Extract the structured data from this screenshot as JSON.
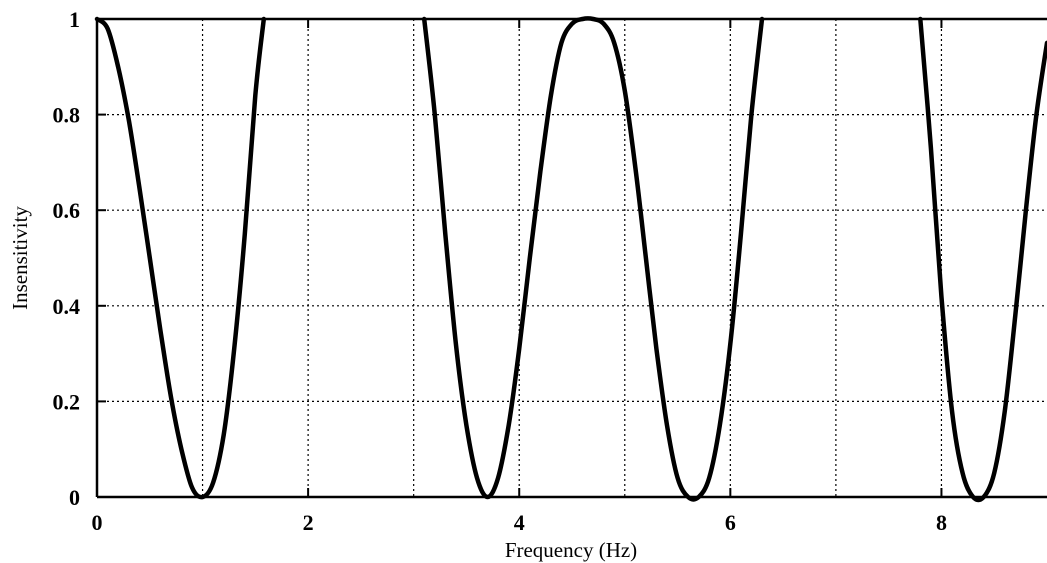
{
  "chart_data": {
    "type": "line",
    "title": "",
    "xlabel": "Frequency (Hz)",
    "ylabel": "Insensitivity",
    "xlim": [
      0,
      9
    ],
    "ylim": [
      0,
      1
    ],
    "x_ticks": [
      0,
      2,
      4,
      6,
      8
    ],
    "y_ticks": [
      0,
      0.2,
      0.4,
      0.6,
      0.8,
      1
    ],
    "x_tick_labels": [
      "0",
      "2",
      "4",
      "6",
      "8"
    ],
    "y_tick_labels": [
      "0",
      "0.2",
      "0.4",
      "0.6",
      "0.8",
      "1"
    ],
    "x_grid": [
      1,
      2,
      3,
      4,
      5,
      6,
      7,
      8
    ],
    "y_grid": [
      0.2,
      0.4,
      0.6,
      0.8
    ],
    "grid": true,
    "series": [
      {
        "x": [
          0,
          0.1,
          0.2,
          0.3,
          0.4,
          0.5,
          0.6,
          0.7,
          0.8,
          0.9,
          1.0,
          1.1,
          1.2,
          1.3,
          1.4,
          1.5,
          1.58,
          3.1,
          3.2,
          3.3,
          3.4,
          3.5,
          3.6,
          3.7,
          3.8,
          3.9,
          4.0,
          4.1,
          4.2,
          4.3,
          4.4,
          4.5,
          4.6,
          4.7,
          4.8,
          4.9,
          5.0,
          5.1,
          5.2,
          5.3,
          5.4,
          5.5,
          5.6,
          5.7,
          5.8,
          5.9,
          6.0,
          6.1,
          6.2,
          6.3,
          7.8,
          7.9,
          8.0,
          8.1,
          8.2,
          8.3,
          8.4,
          8.5,
          8.6,
          8.7,
          8.8,
          8.9,
          9.0
        ],
        "y": [
          1.0,
          0.98,
          0.9,
          0.79,
          0.65,
          0.5,
          0.35,
          0.21,
          0.1,
          0.02,
          0.0,
          0.03,
          0.13,
          0.31,
          0.55,
          0.84,
          1.0,
          1.0,
          0.8,
          0.55,
          0.32,
          0.15,
          0.04,
          0.0,
          0.04,
          0.15,
          0.31,
          0.5,
          0.68,
          0.84,
          0.95,
          0.99,
          1.0,
          1.0,
          0.99,
          0.95,
          0.85,
          0.69,
          0.5,
          0.31,
          0.15,
          0.04,
          0.0,
          0.0,
          0.04,
          0.15,
          0.32,
          0.55,
          0.8,
          1.0,
          1.0,
          0.73,
          0.42,
          0.18,
          0.05,
          0.0,
          0.0,
          0.05,
          0.18,
          0.38,
          0.6,
          0.8,
          0.95
        ]
      }
    ]
  }
}
